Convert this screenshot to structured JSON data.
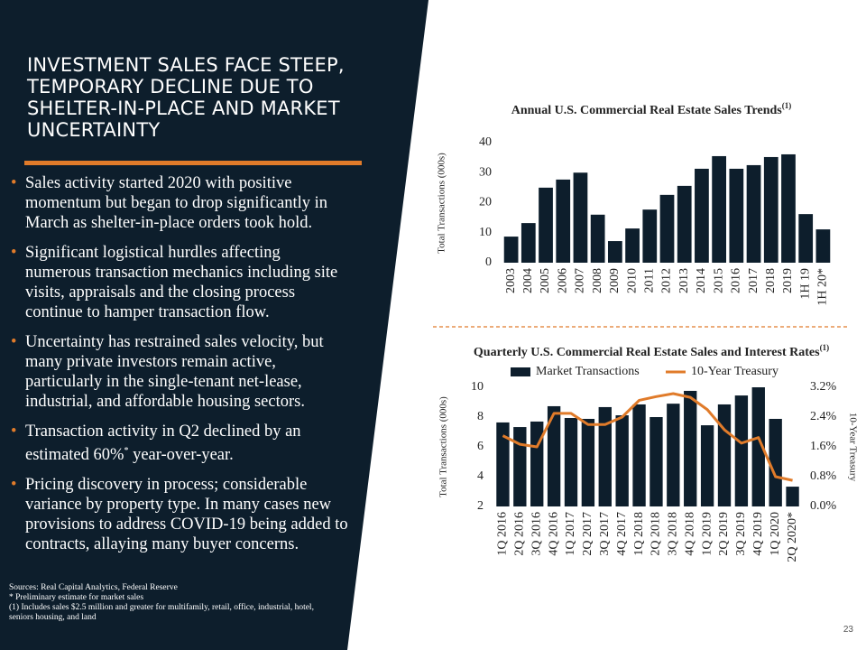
{
  "title": "INVESTMENT SALES FACE STEEP, TEMPORARY DECLINE DUE TO SHELTER-IN-PLACE AND MARKET UNCERTAINTY",
  "bullets": [
    {
      "text": "Sales activity started 2020 with positive momentum but began to drop significantly in March as shelter-in-place orders took hold."
    },
    {
      "text": "Significant logistical hurdles affecting numerous transaction mechanics including site visits, appraisals and the closing process continue to hamper transaction flow."
    },
    {
      "text": "Uncertainty has restrained sales velocity, but many private investors remain active, particularly in the single-tenant net-lease, industrial, and affordable housing sectors."
    },
    {
      "text": "Transaction activity in Q2 declined by an estimated 60%",
      "sup": "*",
      "text_after": " year-over-year."
    },
    {
      "text": "Pricing discovery in process; considerable variance by property type. In many cases new provisions to address COVID-19 being added to contracts, allaying many buyer concerns."
    }
  ],
  "footnotes": [
    "Sources: Real Capital Analytics, Federal Reserve",
    "* Preliminary estimate for market sales",
    "(1)     Includes sales $2.5 million and greater for multifamily, retail, office, industrial, hotel, seniors housing, and land"
  ],
  "page_number": "23",
  "chart_data": [
    {
      "type": "bar",
      "title": "Annual U.S. Commercial Real Estate Sales Trends",
      "title_note": "(1)",
      "ylabel": "Total Transactions (000s)",
      "categories": [
        "2003",
        "2004",
        "2005",
        "2006",
        "2007",
        "2008",
        "2009",
        "2010",
        "2011",
        "2012",
        "2013",
        "2014",
        "2015",
        "2016",
        "2017",
        "2018",
        "2019",
        "1H 19",
        "1H 20*"
      ],
      "values": [
        8.7,
        13.2,
        25,
        27.7,
        30,
        16,
        7.2,
        11.4,
        17.7,
        22.6,
        25.6,
        31.3,
        35.5,
        31.3,
        32.5,
        35.2,
        36.1,
        16.2,
        11.1
      ],
      "color": "#0d1e2c",
      "ylim": [
        0,
        40
      ],
      "yticks": [
        0,
        10,
        20,
        30,
        40
      ]
    },
    {
      "type": "combo",
      "title": "Quarterly U.S. Commercial Real Estate Sales and Interest Rates",
      "title_note": "(1)",
      "ylabel": "Total Transactions (000s)",
      "y2label": "10-Year Treasury",
      "categories": [
        "1Q 2016",
        "2Q 2016",
        "3Q 2016",
        "4Q 2016",
        "1Q 2017",
        "2Q 2017",
        "3Q 2017",
        "4Q 2017",
        "1Q 2018",
        "2Q 2018",
        "3Q 2018",
        "4Q 2018",
        "1Q 2019",
        "2Q 2019",
        "3Q 2019",
        "4Q 2019",
        "1Q 2020",
        "2Q 2020*"
      ],
      "series": [
        {
          "name": "Market Transactions",
          "color": "#0d1e2c",
          "values": [
            7.64,
            7.33,
            7.7,
            8.73,
            7.94,
            7.88,
            8.67,
            8.12,
            8.85,
            8.0,
            8.9,
            9.76,
            7.45,
            8.85,
            9.45,
            10.0,
            7.88,
            3.33
          ]
        },
        {
          "name": "10-Year Treasury",
          "color": "#e07b2a",
          "axis": "y2",
          "values": [
            1.9,
            1.67,
            1.6,
            2.5,
            2.5,
            2.2,
            2.2,
            2.4,
            2.85,
            2.95,
            3.03,
            2.93,
            2.6,
            2.06,
            1.7,
            1.85,
            0.8,
            0.7
          ]
        }
      ],
      "ylim": [
        2,
        10
      ],
      "yticks": [
        2,
        4,
        6,
        8,
        10
      ],
      "y2lim": [
        0,
        3.2
      ],
      "y2ticks": [
        {
          "value": 0,
          "label": "0.0%"
        },
        {
          "value": 0.8,
          "label": "0.8%"
        },
        {
          "value": 1.6,
          "label": "1.6%"
        },
        {
          "value": 2.4,
          "label": "2.4%"
        },
        {
          "value": 3.2,
          "label": "3.2%"
        }
      ]
    }
  ]
}
